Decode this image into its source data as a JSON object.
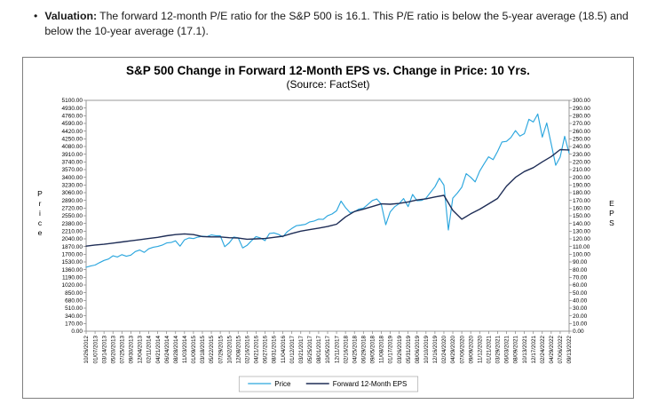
{
  "doc": {
    "bullet_label": "Valuation:",
    "bullet_text": "The forward 12-month P/E ratio for the S&P 500 is 16.1. This P/E ratio is below the 5-year average (18.5) and below the 10-year average (17.1)."
  },
  "chart_data": {
    "type": "line",
    "title": "S&P 500 Change in Forward 12-Month EPS vs. Change in Price: 10 Yrs.",
    "subtitle": "(Source: FactSet)",
    "legend_position": "bottom",
    "grid": false,
    "left_axis": {
      "label": "Price",
      "min": 0,
      "max": 5100,
      "step": 170
    },
    "right_axis": {
      "label": "EPS",
      "min": 0,
      "max": 300,
      "step": 10
    },
    "x_tick_labels": [
      "10/26/2012",
      "01/07/2013",
      "03/14/2013",
      "05/20/2013",
      "07/25/2013",
      "09/30/2013",
      "12/04/2013",
      "02/11/2014",
      "04/21/2014",
      "06/24/2014",
      "08/28/2014",
      "11/03/2014",
      "01/09/2015",
      "03/18/2015",
      "05/22/2015",
      "07/29/2015",
      "10/02/2015",
      "12/08/2015",
      "02/16/2016",
      "04/21/2016",
      "06/27/2016",
      "08/31/2016",
      "11/04/2016",
      "01/12/2017",
      "03/21/2017",
      "05/25/2017",
      "08/01/2017",
      "10/05/2017",
      "12/11/2017",
      "02/16/2018",
      "04/25/2018",
      "06/29/2018",
      "09/05/2018",
      "11/08/2018",
      "01/17/2019",
      "03/26/2019",
      "05/31/2019",
      "08/06/2019",
      "10/10/2019",
      "12/16/2019",
      "02/24/2020",
      "04/29/2020",
      "07/06/2020",
      "09/09/2020",
      "11/12/2020",
      "01/21/2021",
      "03/29/2021",
      "06/03/2021",
      "08/09/2021",
      "10/13/2021",
      "12/17/2021",
      "02/24/2022",
      "04/29/2022",
      "07/06/2022",
      "09/13/2022"
    ],
    "series": [
      {
        "name": "Price",
        "axis": "left",
        "color": "#2BA6DE",
        "values": [
          1412,
          1440,
          1462,
          1515,
          1563,
          1595,
          1666,
          1640,
          1690,
          1655,
          1682,
          1760,
          1793,
          1742,
          1820,
          1855,
          1871,
          1900,
          1950,
          1960,
          1997,
          1880,
          2018,
          2060,
          2045,
          2080,
          2099,
          2090,
          2126,
          2110,
          2109,
          1868,
          1951,
          2080,
          2064,
          1840,
          1896,
          2000,
          2091,
          2060,
          2000,
          2160,
          2171,
          2140,
          2085,
          2200,
          2270,
          2330,
          2344,
          2360,
          2415,
          2435,
          2476,
          2470,
          2552,
          2590,
          2660,
          2873,
          2732,
          2620,
          2639,
          2700,
          2718,
          2800,
          2888,
          2920,
          2806,
          2351,
          2636,
          2750,
          2818,
          2930,
          2752,
          3020,
          2882,
          2890,
          2938,
          3067,
          3191,
          3380,
          3226,
          2237,
          2940,
          3050,
          3180,
          3480,
          3399,
          3300,
          3537,
          3700,
          3853,
          3790,
          3971,
          4180,
          4193,
          4280,
          4432,
          4310,
          4364,
          4680,
          4621,
          4797,
          4288,
          4600,
          4132,
          3667,
          3845,
          4305,
          3933
        ]
      },
      {
        "name": "Forward 12-Month EPS",
        "axis": "right",
        "color": "#1E2D56",
        "values": [
          110.5,
          112,
          113,
          114.5,
          116,
          117.5,
          119,
          120.5,
          122,
          124,
          125.5,
          126.5,
          125.5,
          123,
          122.5,
          122.5,
          121.5,
          121,
          119.5,
          120,
          120.5,
          122,
          123.5,
          127,
          130,
          132,
          134,
          136,
          139,
          148.5,
          155.5,
          158.5,
          162,
          165.5,
          165,
          166,
          168,
          170.5,
          172,
          174.5,
          176.5,
          157,
          145.5,
          152.5,
          158.5,
          165.5,
          172.5,
          188.5,
          200,
          207.5,
          212.5,
          220,
          227,
          236,
          235.5
        ]
      }
    ]
  }
}
